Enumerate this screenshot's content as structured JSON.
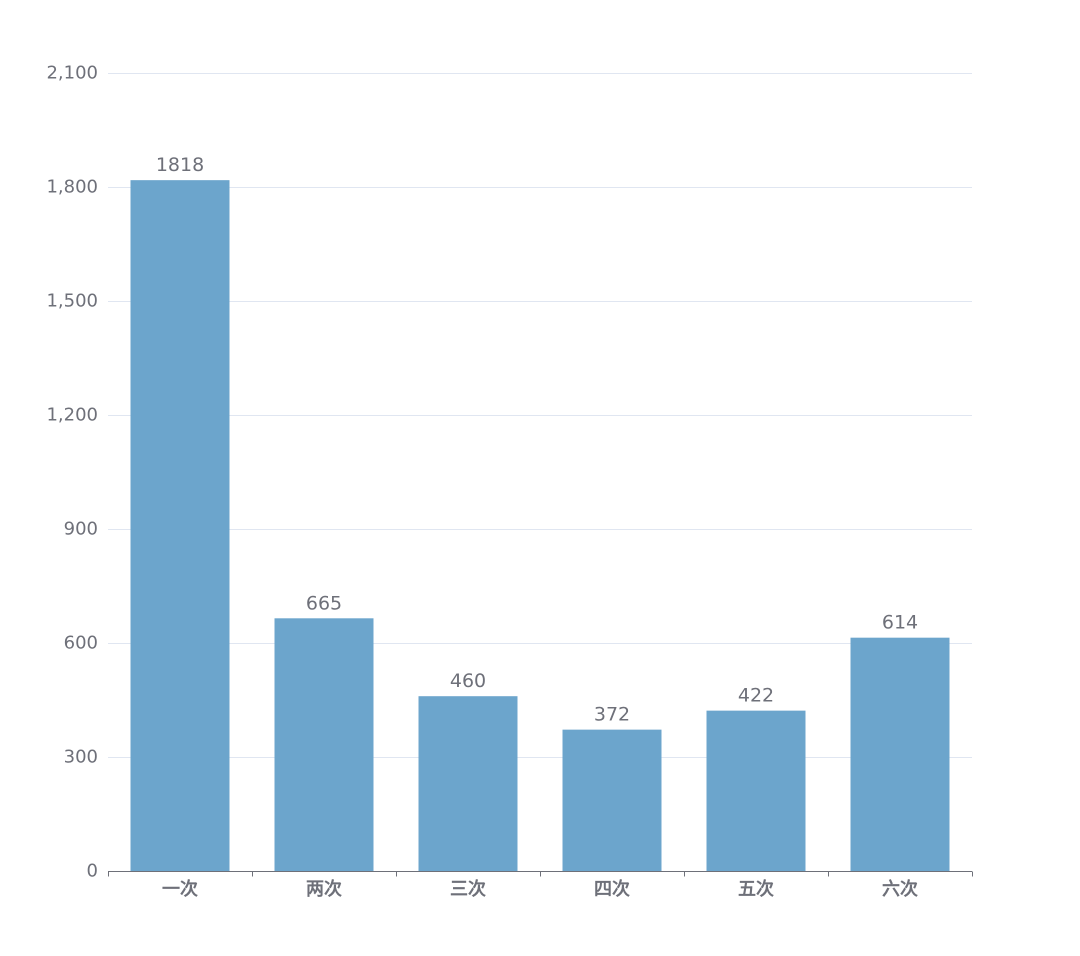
{
  "chart_data": {
    "type": "bar",
    "categories": [
      "一次",
      "两次",
      "三次",
      "四次",
      "五次",
      "六次"
    ],
    "values": [
      1818,
      665,
      460,
      372,
      422,
      614
    ],
    "title": "",
    "xlabel": "",
    "ylabel": "",
    "ylim": [
      0,
      2100
    ],
    "yticks": [
      0,
      300,
      600,
      900,
      1200,
      1500,
      1800,
      2100
    ],
    "ytick_labels": [
      "0",
      "300",
      "600",
      "900",
      "1,200",
      "1,500",
      "1,800",
      "2,100"
    ],
    "grid": true,
    "legend": "none",
    "bar_color": "#6ca5cc",
    "show_data_labels": true
  }
}
